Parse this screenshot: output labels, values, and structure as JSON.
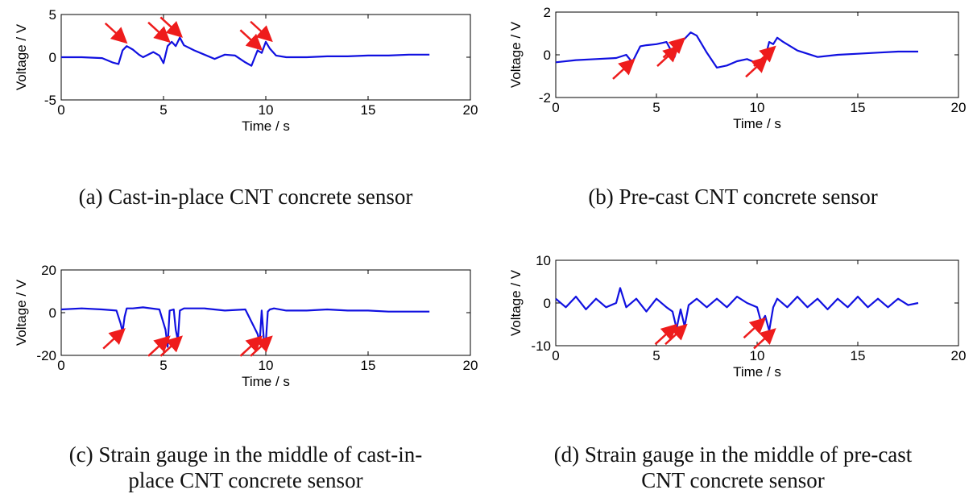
{
  "captions": {
    "a": "(a) Cast-in-place CNT concrete sensor",
    "b": "(b) Pre-cast CNT concrete sensor",
    "c_line1": "(c) Strain gauge in the middle of cast-in-",
    "c_line2": "place CNT concrete sensor",
    "d_line1": "(d) Strain gauge in the middle of pre-cast",
    "d_line2": "CNT concrete sensor"
  },
  "colors": {
    "signal": "#1010e0",
    "arrow": "#ee1c1c",
    "axis": "#000000"
  },
  "chart_data": [
    {
      "id": "a",
      "type": "line",
      "xlabel": "Time / s",
      "ylabel": "Voltage / V",
      "xlim": [
        0,
        20
      ],
      "ylim": [
        -5,
        5
      ],
      "xticks": [
        "0",
        "5",
        "10",
        "15",
        "20"
      ],
      "yticks": [
        "5",
        "0",
        "-5"
      ],
      "series": [
        {
          "x": [
            0,
            1,
            2,
            2.5,
            2.8,
            3,
            3.2,
            3.5,
            3.8,
            4,
            4.5,
            4.8,
            5,
            5.2,
            5.4,
            5.6,
            5.8,
            6,
            6.5,
            7,
            7.5,
            8,
            8.5,
            9,
            9.3,
            9.6,
            9.8,
            10,
            10.2,
            10.5,
            11,
            12,
            13,
            14,
            15,
            16,
            17,
            18
          ],
          "y": [
            0,
            0,
            -0.1,
            -0.6,
            -0.8,
            0.8,
            1.3,
            0.9,
            0.3,
            0,
            0.6,
            0.2,
            -0.7,
            1.3,
            1.8,
            1.3,
            2.3,
            1.4,
            0.8,
            0.3,
            -0.2,
            0.3,
            0.2,
            -0.6,
            -1,
            0.8,
            0.5,
            1.8,
            1,
            0.2,
            0,
            0,
            0.1,
            0.1,
            0.2,
            0.2,
            0.3,
            0.3
          ]
        }
      ],
      "arrows": [
        {
          "tip": [
            3.1,
            1.9
          ],
          "dir": "down-right"
        },
        {
          "tip": [
            5.2,
            2.0
          ],
          "dir": "down-right"
        },
        {
          "tip": [
            5.8,
            2.6
          ],
          "dir": "down-right"
        },
        {
          "tip": [
            9.7,
            1.1
          ],
          "dir": "down-right"
        },
        {
          "tip": [
            10.2,
            2.1
          ],
          "dir": "down-right"
        }
      ]
    },
    {
      "id": "b",
      "type": "line",
      "xlabel": "Time / s",
      "ylabel": "Voltage / V",
      "xlim": [
        0,
        20
      ],
      "ylim": [
        -2,
        2
      ],
      "xticks": [
        "0",
        "5",
        "10",
        "15",
        "20"
      ],
      "yticks": [
        "2",
        "0",
        "-2"
      ],
      "series": [
        {
          "x": [
            0,
            1,
            2,
            3,
            3.5,
            3.8,
            4.2,
            4.5,
            5,
            5.5,
            5.9,
            6.1,
            6.4,
            6.7,
            7,
            7.5,
            8,
            8.5,
            9,
            9.5,
            10,
            10.3,
            10.6,
            10.8,
            11,
            11.3,
            12,
            13,
            14,
            15,
            16,
            17,
            18
          ],
          "y": [
            -0.35,
            -0.25,
            -0.2,
            -0.15,
            0,
            -0.35,
            0.4,
            0.45,
            0.5,
            0.6,
            -0.1,
            0.6,
            0.75,
            1.05,
            0.9,
            0.1,
            -0.6,
            -0.5,
            -0.3,
            -0.2,
            -0.4,
            -0.5,
            0.6,
            0.5,
            0.8,
            0.6,
            0.2,
            -0.1,
            0,
            0.05,
            0.1,
            0.15,
            0.15
          ]
        }
      ],
      "arrows": [
        {
          "tip": [
            3.8,
            -0.3
          ],
          "dir": "up-right"
        },
        {
          "tip": [
            6.0,
            0.3
          ],
          "dir": "up-right"
        },
        {
          "tip": [
            6.3,
            0.7
          ],
          "dir": "up-right"
        },
        {
          "tip": [
            10.4,
            -0.2
          ],
          "dir": "up-right"
        },
        {
          "tip": [
            10.8,
            0.3
          ],
          "dir": "up-right"
        }
      ]
    },
    {
      "id": "c",
      "type": "line",
      "xlabel": "Time / s",
      "ylabel": "Voltage / V",
      "xlim": [
        0,
        20
      ],
      "ylim": [
        -20,
        20
      ],
      "xticks": [
        "0",
        "5",
        "10",
        "15",
        "20"
      ],
      "yticks": [
        "20",
        "0",
        "-20"
      ],
      "series": [
        {
          "x": [
            0,
            1,
            2,
            2.7,
            2.9,
            3,
            3.1,
            3.2,
            3.5,
            4,
            4.8,
            5.1,
            5.2,
            5.3,
            5.5,
            5.6,
            5.7,
            5.8,
            6,
            7,
            8,
            9,
            9.6,
            9.7,
            9.8,
            9.9,
            10,
            10.1,
            10.2,
            10.4,
            11,
            12,
            13,
            14,
            15,
            16,
            17,
            18
          ],
          "y": [
            1.5,
            2,
            1.5,
            1,
            -5,
            -9,
            -2,
            2,
            2,
            2.5,
            1.5,
            -8,
            -16,
            1,
            1.5,
            -8,
            -13,
            1,
            2,
            2,
            1,
            1.5,
            -10,
            -14,
            1,
            -12,
            -14,
            0.5,
            1.5,
            2,
            1,
            1,
            1.5,
            1,
            1,
            0.5,
            0.5,
            0.5
          ]
        }
      ],
      "arrows": [
        {
          "tip": [
            3.0,
            -8.5
          ],
          "dir": "up-right"
        },
        {
          "tip": [
            5.2,
            -12
          ],
          "dir": "up-right"
        },
        {
          "tip": [
            5.8,
            -12
          ],
          "dir": "up-right"
        },
        {
          "tip": [
            9.7,
            -12
          ],
          "dir": "up-right"
        },
        {
          "tip": [
            10.2,
            -12
          ],
          "dir": "up-right"
        }
      ]
    },
    {
      "id": "d",
      "type": "line",
      "xlabel": "Time / s",
      "ylabel": "Voltage / V",
      "xlim": [
        0,
        20
      ],
      "ylim": [
        -10,
        10
      ],
      "xticks": [
        "0",
        "5",
        "10",
        "15",
        "20"
      ],
      "yticks": [
        "10",
        "0",
        "-10"
      ],
      "series": [
        {
          "x": [
            0,
            0.5,
            1,
            1.5,
            2,
            2.5,
            3,
            3.2,
            3.5,
            4,
            4.5,
            5,
            5.5,
            5.8,
            6,
            6.2,
            6.4,
            6.6,
            7,
            7.5,
            8,
            8.5,
            9,
            9.5,
            10,
            10.2,
            10.4,
            10.6,
            10.8,
            11,
            11.5,
            12,
            12.5,
            13,
            13.5,
            14,
            14.5,
            15,
            15.5,
            16,
            16.5,
            17,
            17.5,
            18
          ],
          "y": [
            1,
            -1,
            1.5,
            -1.5,
            1,
            -1,
            0,
            3.5,
            -1,
            1,
            -2,
            1,
            -1,
            -2,
            -6,
            -1.5,
            -5.5,
            -0.5,
            1,
            -1,
            1,
            -1,
            1.5,
            0,
            -1,
            -4.5,
            -3,
            -6.5,
            -1,
            1,
            -1,
            1.5,
            -1,
            1,
            -1.5,
            1,
            -1,
            1.5,
            -1,
            1,
            -1,
            1,
            -0.5,
            0
          ]
        }
      ],
      "arrows": [
        {
          "tip": [
            5.9,
            -5.5
          ],
          "dir": "up-right"
        },
        {
          "tip": [
            6.4,
            -5.5
          ],
          "dir": "up-right"
        },
        {
          "tip": [
            10.3,
            -4
          ],
          "dir": "up-right"
        },
        {
          "tip": [
            10.8,
            -6.5
          ],
          "dir": "up-right"
        }
      ]
    }
  ]
}
